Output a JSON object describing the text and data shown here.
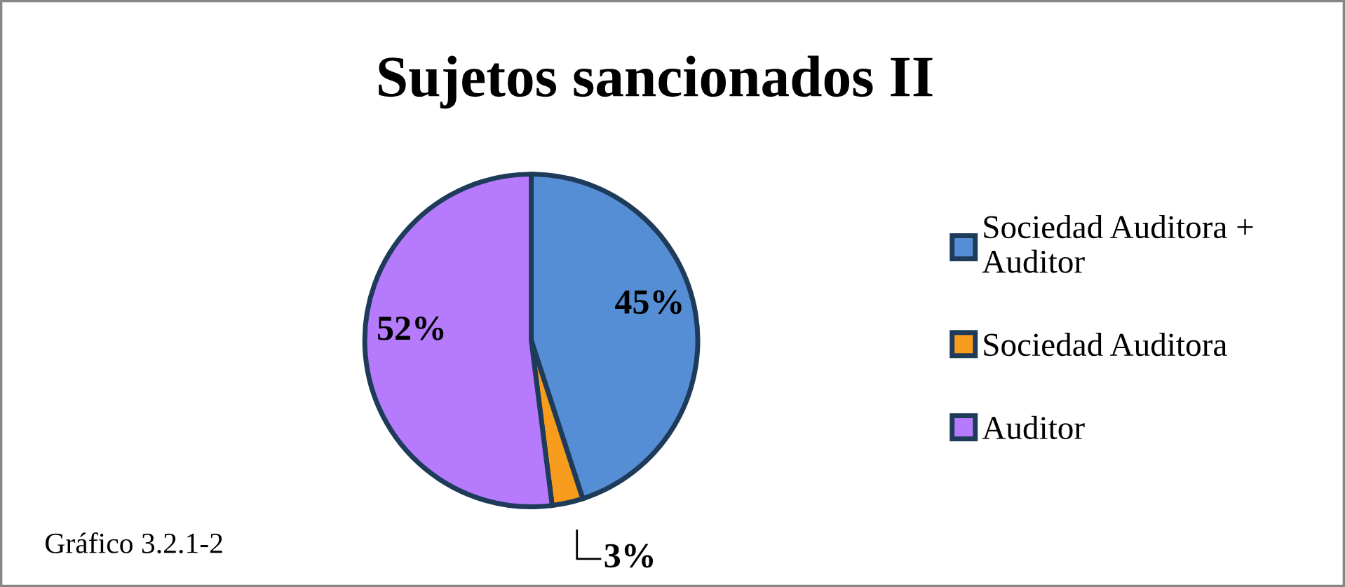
{
  "chart_data": {
    "type": "pie",
    "title": "Sujetos sancionados II",
    "categories": [
      "Sociedad Auditora + Auditor",
      "Sociedad Auditora",
      "Auditor"
    ],
    "values": [
      45,
      3,
      52
    ],
    "colors": [
      "#558ed5",
      "#f79c1c",
      "#b57bfc"
    ],
    "value_labels": [
      "45%",
      "3%",
      "52%"
    ],
    "legend": "right",
    "annotations": [
      "Gráfico 3.2.1-2"
    ]
  }
}
